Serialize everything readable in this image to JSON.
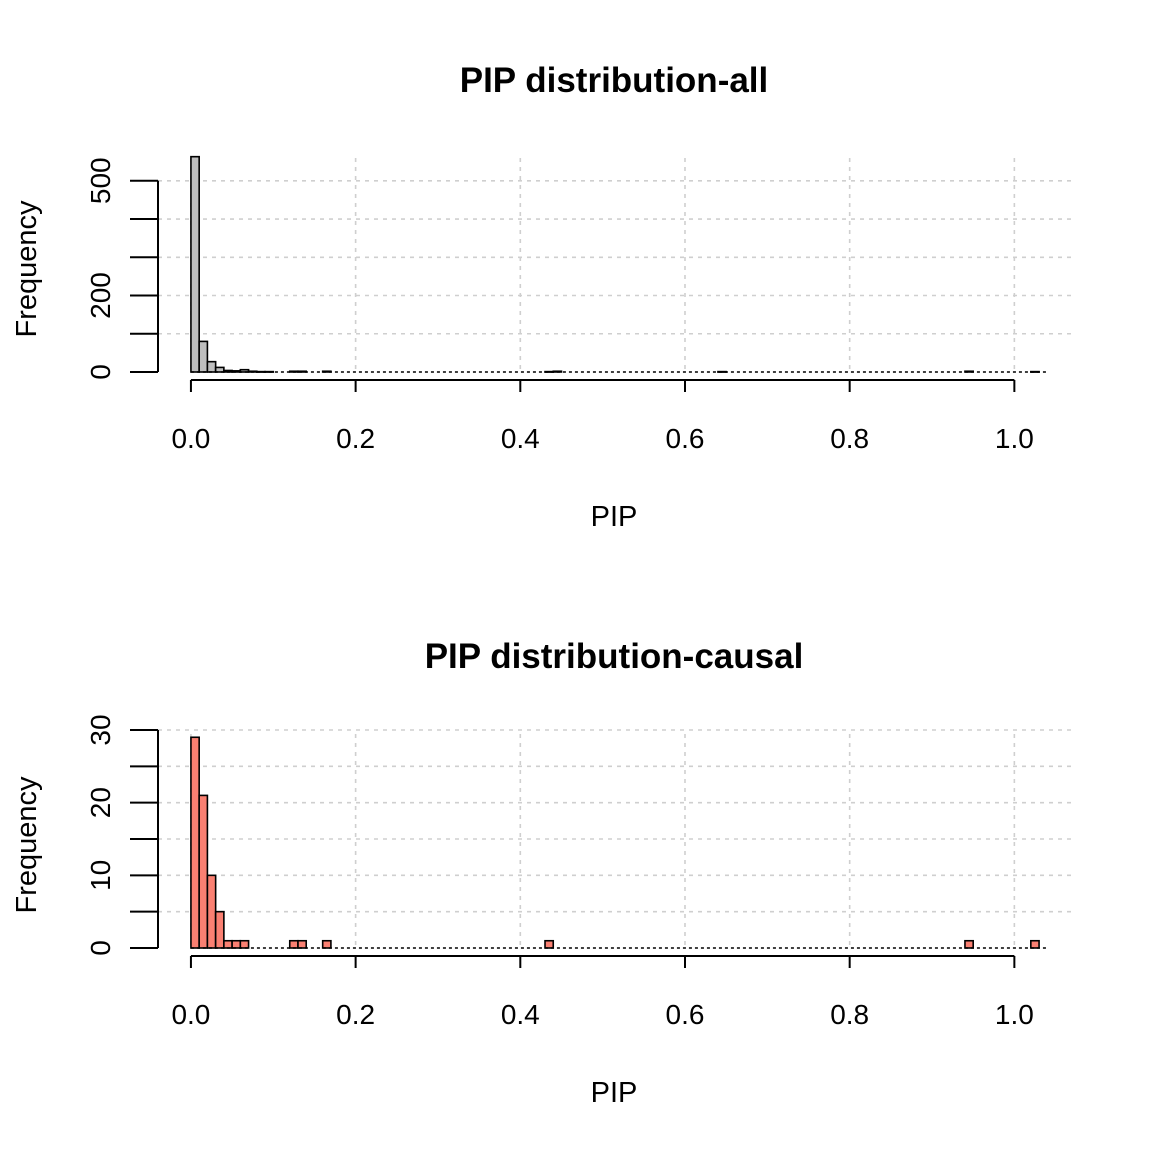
{
  "chart_data": [
    {
      "type": "bar",
      "title": "PIP distribution-all",
      "xlabel": "PIP",
      "ylabel": "Frequency",
      "bar_color": "#bebebe",
      "bin_width": 0.01,
      "xlim": [
        -0.04,
        1.07
      ],
      "ylim": [
        0,
        570
      ],
      "x_ticks": [
        "0.0",
        "0.2",
        "0.4",
        "0.6",
        "0.8",
        "1.0"
      ],
      "y_ticks": [
        "0",
        "200",
        "500"
      ],
      "grid": true,
      "bins": [
        {
          "x": 0.0,
          "value": 563
        },
        {
          "x": 0.01,
          "value": 80
        },
        {
          "x": 0.02,
          "value": 27
        },
        {
          "x": 0.03,
          "value": 12
        },
        {
          "x": 0.04,
          "value": 4
        },
        {
          "x": 0.05,
          "value": 3
        },
        {
          "x": 0.06,
          "value": 6
        },
        {
          "x": 0.07,
          "value": 2
        },
        {
          "x": 0.08,
          "value": 1
        },
        {
          "x": 0.09,
          "value": 1
        },
        {
          "x": 0.12,
          "value": 2
        },
        {
          "x": 0.13,
          "value": 2
        },
        {
          "x": 0.16,
          "value": 2
        },
        {
          "x": 0.43,
          "value": 1
        },
        {
          "x": 0.44,
          "value": 2
        },
        {
          "x": 0.64,
          "value": 1
        },
        {
          "x": 0.94,
          "value": 2
        },
        {
          "x": 1.02,
          "value": 1
        }
      ]
    },
    {
      "type": "bar",
      "title": "PIP distribution-causal",
      "xlabel": "PIP",
      "ylabel": "Frequency",
      "bar_color": "#fa8072",
      "bin_width": 0.01,
      "xlim": [
        -0.04,
        1.07
      ],
      "ylim": [
        0,
        30
      ],
      "x_ticks": [
        "0.0",
        "0.2",
        "0.4",
        "0.6",
        "0.8",
        "1.0"
      ],
      "y_ticks": [
        "0",
        "10",
        "20",
        "30"
      ],
      "grid": true,
      "bins": [
        {
          "x": 0.0,
          "value": 29
        },
        {
          "x": 0.01,
          "value": 21
        },
        {
          "x": 0.02,
          "value": 10
        },
        {
          "x": 0.03,
          "value": 5
        },
        {
          "x": 0.04,
          "value": 1
        },
        {
          "x": 0.05,
          "value": 1
        },
        {
          "x": 0.06,
          "value": 1
        },
        {
          "x": 0.12,
          "value": 1
        },
        {
          "x": 0.13,
          "value": 1
        },
        {
          "x": 0.16,
          "value": 1
        },
        {
          "x": 0.43,
          "value": 1
        },
        {
          "x": 0.94,
          "value": 1
        },
        {
          "x": 1.02,
          "value": 1
        }
      ]
    }
  ]
}
